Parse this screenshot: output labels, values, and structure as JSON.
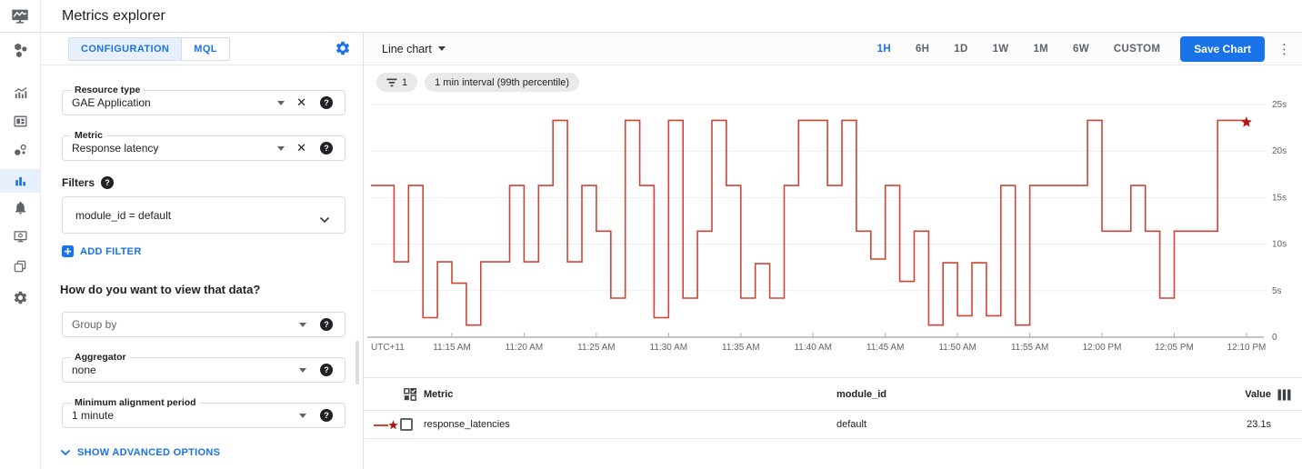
{
  "app_bar": {
    "title": "Metrics explorer"
  },
  "nav": {
    "active_item": "metrics-explorer",
    "items": [
      "monitoring-overview",
      "metrics",
      "dashboards",
      "services",
      "metrics-explorer",
      "alerting",
      "uptime-checks",
      "groups",
      "settings"
    ]
  },
  "config_panel": {
    "tabs": [
      {
        "label": "CONFIGURATION",
        "active": true
      },
      {
        "label": "MQL",
        "active": false
      }
    ],
    "fields": {
      "resource_type": {
        "label": "Resource type",
        "value": "GAE Application"
      },
      "metric": {
        "label": "Metric",
        "value": "Response latency"
      },
      "filter": {
        "value": "module_id = default"
      },
      "group_by": {
        "placeholder": "Group by"
      },
      "aggregator": {
        "label": "Aggregator",
        "value": "none"
      },
      "min_alignment_period": {
        "label": "Minimum alignment period",
        "value": "1 minute"
      }
    },
    "filters_heading": "Filters",
    "add_filter_label": "ADD FILTER",
    "view_heading": "How do you want to view that data?",
    "show_advanced_label": "SHOW ADVANCED OPTIONS"
  },
  "chart_toolbar": {
    "chart_type_label": "Line chart",
    "time_ranges": [
      "1H",
      "6H",
      "1D",
      "1W",
      "1M",
      "6W",
      "CUSTOM"
    ],
    "active_range": "1H",
    "save_button_label": "Save Chart",
    "kebab": "⋮"
  },
  "chips": [
    {
      "icon": "filter-icon",
      "label": "1"
    },
    {
      "label": "1 min interval (99th percentile)"
    }
  ],
  "chart_data": {
    "type": "line",
    "style": "step",
    "grid": true,
    "x_axis": {
      "timezone_label": "UTC+11",
      "start_time": "11:10 AM",
      "end_time": "12:10 PM",
      "minutes_domain": [
        -0.6,
        61.2
      ],
      "tick_minutes": [
        5,
        10,
        15,
        20,
        25,
        30,
        35,
        40,
        45,
        50,
        55,
        60
      ],
      "tick_labels": [
        "11:15 AM",
        "11:20 AM",
        "11:25 AM",
        "11:30 AM",
        "11:35 AM",
        "11:40 AM",
        "11:45 AM",
        "11:50 AM",
        "11:55 AM",
        "12:00 PM",
        "12:05 PM",
        "12:10 PM"
      ]
    },
    "y_axis": {
      "unit": "seconds",
      "tick_values": [
        25,
        20,
        15,
        10,
        5,
        0
      ],
      "tick_labels": [
        "25s",
        "20s",
        "15s",
        "10s",
        "5s",
        "0"
      ],
      "ylim": [
        0,
        26.5
      ]
    },
    "series": [
      {
        "name": "response_latencies",
        "color": "#d04437",
        "marker": "star",
        "marker_color": "#b31412",
        "interval": "1 min",
        "aggregation": "99th percentile",
        "minute_values": [
          16.3,
          8.1,
          16.3,
          2.1,
          8.1,
          5.8,
          1.3,
          8.1,
          8.1,
          16.3,
          8.1,
          16.3,
          23.3,
          8.1,
          16.3,
          11.4,
          4.2,
          23.3,
          16.3,
          2.1,
          23.3,
          4.2,
          11.4,
          23.3,
          16.3,
          4.2,
          7.9,
          4.2,
          16.3,
          23.3,
          23.3,
          16.3,
          23.3,
          11.4,
          8.4,
          16.3,
          6.0,
          11.4,
          1.3,
          8.0,
          2.3,
          8.0,
          2.3,
          16.3,
          1.3,
          16.3,
          16.3,
          16.3,
          16.3,
          23.3,
          11.4,
          11.4,
          16.3,
          11.4,
          4.2,
          11.4,
          11.4,
          11.4,
          23.3,
          23.3,
          23.1
        ]
      }
    ]
  },
  "table": {
    "headers": {
      "metric": "Metric",
      "module_id": "module_id",
      "value": "Value"
    },
    "rows": [
      {
        "metric": "response_latencies",
        "module_id": "default",
        "value": "23.1s"
      }
    ]
  },
  "colors": {
    "accent": "#1a73e8",
    "active_tab_bg": "#e8f0fe",
    "active_nav_bg": "#e8f0fe",
    "chip_bg": "#e7e9ea",
    "border": "#e0e0e0",
    "text": "#202124",
    "muted": "#5f6368",
    "line_red": "#d04437"
  }
}
